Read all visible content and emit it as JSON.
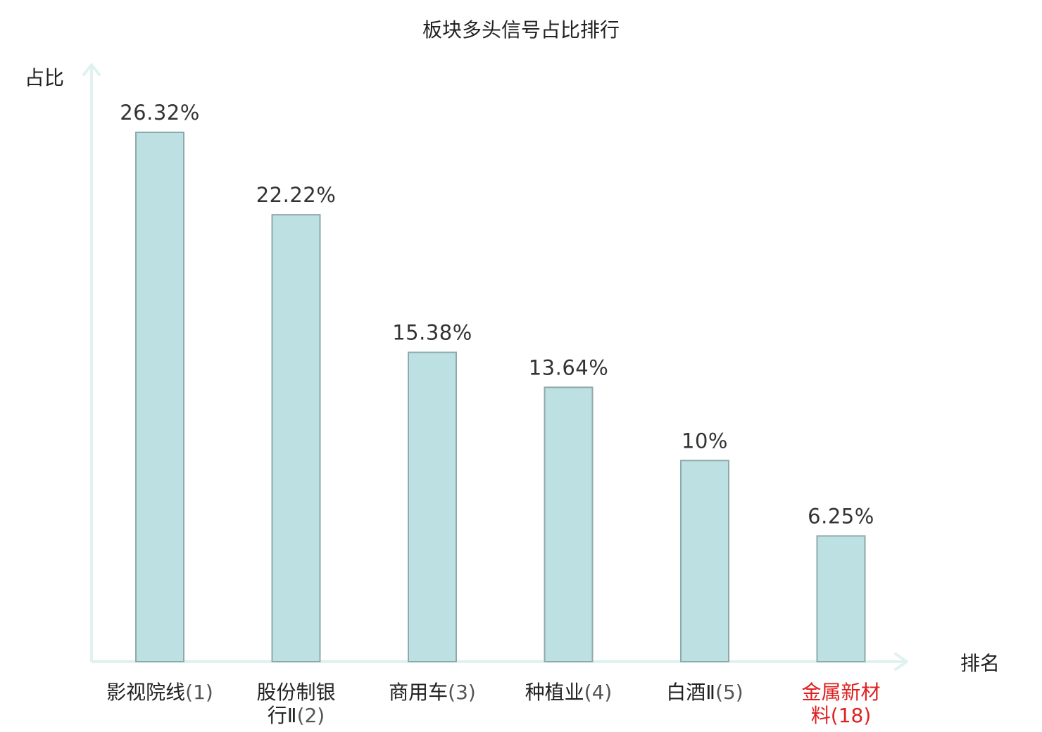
{
  "chart_data": {
    "type": "bar",
    "title": "板块多头信号占比排行",
    "xlabel": "排名",
    "ylabel": "占比",
    "categories": [
      {
        "lines": [
          "影视院线(1)"
        ],
        "highlight": false
      },
      {
        "lines": [
          "股份制银",
          "行Ⅱ(2)"
        ],
        "highlight": false
      },
      {
        "lines": [
          "商用车(3)"
        ],
        "highlight": false
      },
      {
        "lines": [
          "种植业(4)"
        ],
        "highlight": false
      },
      {
        "lines": [
          "白酒Ⅱ(5)"
        ],
        "highlight": false
      },
      {
        "lines": [
          "金属新材",
          "料(18)"
        ],
        "highlight": true
      }
    ],
    "values": [
      26.32,
      22.22,
      15.38,
      13.64,
      10,
      6.25
    ],
    "value_labels": [
      "26.32%",
      "22.22%",
      "15.38%",
      "13.64%",
      "10%",
      "6.25%"
    ],
    "ylim": [
      0,
      28.7
    ],
    "grid": false,
    "colors": {
      "bar_fill": "#bde0e2",
      "bar_stroke": "#8fa9aa",
      "axis": "#e0f2ef",
      "highlight_text": "#e02020",
      "cat_text": "#222222",
      "cat_paren_text": "#555555"
    }
  }
}
